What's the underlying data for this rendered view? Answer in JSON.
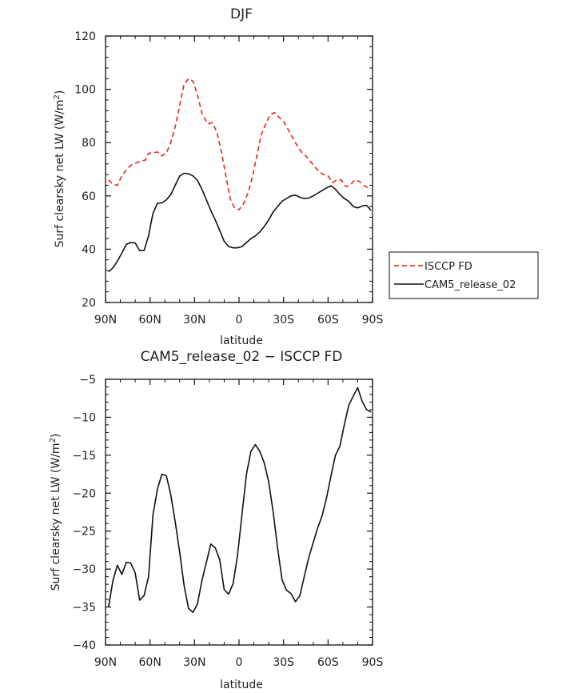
{
  "chart_data": [
    {
      "type": "line",
      "title": "DJF",
      "xlabel": "latitude",
      "ylabel": "Surf clearsky net LW (W/m²)",
      "ylabel_main": "Surf clearsky net LW (W/m",
      "ylabel_sup": "2",
      "ylabel_end": ")",
      "xlim": [
        -90,
        90
      ],
      "ylim": [
        20,
        120
      ],
      "x_ticks": [
        -90,
        -60,
        -30,
        0,
        30,
        60,
        90
      ],
      "x_tick_labels": [
        "90N",
        "60N",
        "30N",
        "0",
        "30S",
        "60S",
        "90S"
      ],
      "y_ticks": [
        20,
        40,
        60,
        80,
        100,
        120
      ],
      "y_tick_labels": [
        "20",
        "40",
        "60",
        "80",
        "100",
        "120"
      ],
      "legend_position": "right",
      "series": [
        {
          "name": "ISCCP FD",
          "color": "#e8221f",
          "dash": "dashed",
          "x": [
            -88,
            -85,
            -82,
            -79,
            -75,
            -72,
            -69,
            -66,
            -63,
            -61,
            -58,
            -55,
            -52,
            -49,
            -46,
            -43,
            -40,
            -37,
            -34,
            -31,
            -28,
            -25,
            -21,
            -18,
            -15,
            -12,
            -9,
            -6,
            -3,
            0,
            3,
            6,
            9,
            12,
            15,
            18,
            21,
            24,
            27,
            30,
            33,
            36,
            39,
            42,
            45,
            48,
            51,
            54,
            57,
            60,
            63,
            66,
            69,
            72,
            75,
            78,
            81,
            84,
            87,
            89
          ],
          "values": [
            66,
            64.3,
            64,
            67.5,
            70.5,
            71.8,
            72.5,
            73,
            73.5,
            76,
            76.2,
            76.5,
            75,
            76,
            80,
            86,
            94,
            102,
            104,
            103,
            98,
            91,
            87,
            87.5,
            84,
            77,
            68,
            59,
            55.5,
            54.8,
            57,
            61,
            67,
            75,
            83,
            87,
            90.5,
            91.3,
            89.5,
            88,
            85,
            82,
            79,
            76.5,
            75,
            73,
            71,
            69,
            68,
            67.5,
            65,
            66,
            66,
            63.5,
            64,
            66,
            65.5,
            64,
            63,
            63
          ]
        },
        {
          "name": "CAM5_release_02",
          "color": "#111111",
          "dash": "solid",
          "x": [
            -88,
            -85,
            -82,
            -79,
            -76,
            -73,
            -70,
            -67,
            -64,
            -61,
            -58,
            -55,
            -52,
            -49,
            -46,
            -43,
            -40,
            -37,
            -34,
            -31,
            -28,
            -25,
            -22,
            -19,
            -16,
            -13,
            -10,
            -7,
            -4,
            -1,
            2,
            5,
            8,
            11,
            14,
            17,
            20,
            23,
            26,
            29,
            32,
            35,
            38,
            41,
            44,
            47,
            50,
            53,
            56,
            59,
            62,
            65,
            68,
            71,
            74,
            77,
            80,
            83,
            86,
            89
          ],
          "values": [
            31.5,
            33,
            35.5,
            38.5,
            41.8,
            42.5,
            42.3,
            39.5,
            39.5,
            45,
            53.5,
            57.2,
            57.4,
            58.5,
            60.5,
            64,
            67.5,
            68.5,
            68.3,
            67.5,
            65.8,
            62.5,
            58.5,
            54.5,
            51,
            47,
            43,
            41,
            40.5,
            40.5,
            41,
            42.5,
            44,
            45,
            46.5,
            48.5,
            51,
            54,
            56,
            58,
            59,
            60,
            60.3,
            59.5,
            59,
            59.2,
            60,
            61,
            62,
            63,
            63.8,
            62.5,
            60.5,
            59,
            58,
            56,
            55.5,
            56.2,
            56.5,
            54.5
          ]
        }
      ]
    },
    {
      "type": "line",
      "title": "CAM5_release_02 − ISCCP FD",
      "xlabel": "latitude",
      "ylabel": "Surf clearsky net LW (W/m²)",
      "ylabel_main": "Surf clearsky net LW (W/m",
      "ylabel_sup": "2",
      "ylabel_end": ")",
      "xlim": [
        -90,
        90
      ],
      "ylim": [
        -40,
        -5
      ],
      "x_ticks": [
        -90,
        -60,
        -30,
        0,
        30,
        60,
        90
      ],
      "x_tick_labels": [
        "90N",
        "60N",
        "30N",
        "0",
        "30S",
        "60S",
        "90S"
      ],
      "y_ticks": [
        -40,
        -35,
        -30,
        -25,
        -20,
        -15,
        -10,
        -5
      ],
      "y_tick_labels": [
        "−40",
        "−35",
        "−30",
        "−25",
        "−20",
        "−15",
        "−10",
        "−5"
      ],
      "series": [
        {
          "name": "CAM5_release_02 − ISCCP FD",
          "color": "#111111",
          "dash": "solid",
          "x": [
            -88,
            -85,
            -82,
            -79,
            -76,
            -73,
            -70,
            -67,
            -64,
            -61,
            -58,
            -55,
            -52,
            -49,
            -46,
            -43,
            -40,
            -37,
            -34,
            -31,
            -28,
            -25,
            -22,
            -19,
            -16,
            -13,
            -10,
            -7,
            -4,
            -1,
            2,
            5,
            8,
            11,
            14,
            17,
            20,
            23,
            26,
            29,
            32,
            35,
            38,
            41,
            44,
            47,
            50,
            53,
            56,
            59,
            62,
            65,
            68,
            71,
            74,
            77,
            80,
            83,
            86,
            89
          ],
          "values": [
            -35,
            -31.5,
            -29.5,
            -30.7,
            -29.1,
            -29.2,
            -30.5,
            -34.1,
            -33.5,
            -31,
            -22.8,
            -19.5,
            -17.5,
            -17.7,
            -20.2,
            -23.8,
            -27.8,
            -32.2,
            -35.2,
            -35.7,
            -34.6,
            -31.5,
            -29.1,
            -26.7,
            -27.2,
            -28.8,
            -32.7,
            -33.3,
            -31.9,
            -28.2,
            -22.8,
            -17.5,
            -14.5,
            -13.6,
            -14.5,
            -16,
            -18.5,
            -22.5,
            -27.2,
            -31.4,
            -32.8,
            -33.2,
            -34.3,
            -33.5,
            -31,
            -28.5,
            -26.5,
            -24.6,
            -23,
            -20.6,
            -17.7,
            -15,
            -13.8,
            -11,
            -8.4,
            -7.2,
            -6.1,
            -7.9,
            -9,
            -9.3
          ]
        }
      ]
    }
  ]
}
